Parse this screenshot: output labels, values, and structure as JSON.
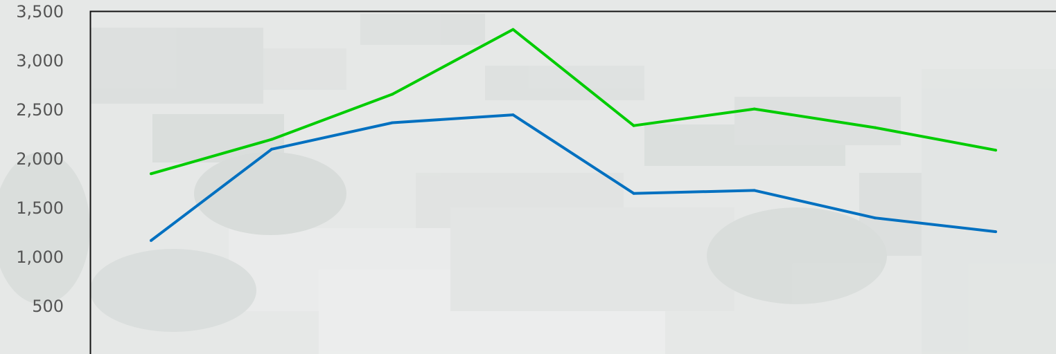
{
  "chart_data": {
    "type": "line",
    "x": [
      1,
      2,
      3,
      4,
      5,
      6,
      7,
      8
    ],
    "ylim": [
      0,
      3500
    ],
    "yticks": [
      500,
      1000,
      1500,
      2000,
      2500,
      3000,
      3500
    ],
    "ytick_labels": [
      "500",
      "1,000",
      "1,500",
      "2,000",
      "2,500",
      "3,000",
      "3,500"
    ],
    "grid": false,
    "legend": "none",
    "series": [
      {
        "color": "#00cc00",
        "values": [
          1850,
          2200,
          2660,
          3320,
          2340,
          2510,
          2320,
          2090
        ]
      },
      {
        "color": "#0070c0",
        "values": [
          1170,
          2100,
          2370,
          2450,
          1650,
          1680,
          1400,
          1260
        ]
      }
    ]
  }
}
